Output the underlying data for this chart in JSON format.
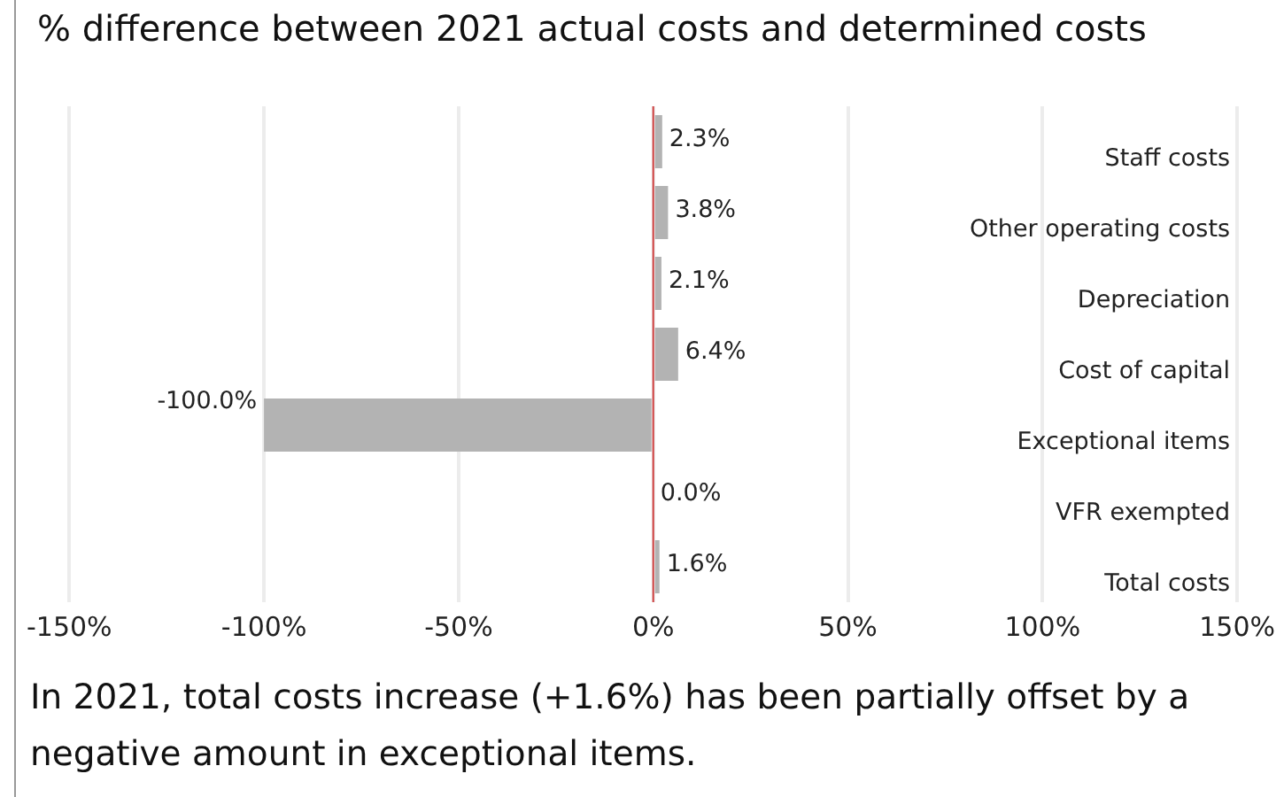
{
  "chart_data": {
    "type": "bar",
    "orientation": "horizontal",
    "title": "% difference between 2021 actual costs and determined costs",
    "categories": [
      "Staff costs",
      "Other operating costs",
      "Depreciation",
      "Cost of capital",
      "Exceptional items",
      "VFR exempted",
      "Total costs"
    ],
    "values": [
      2.3,
      3.8,
      2.1,
      6.4,
      -100.0,
      0.0,
      1.6
    ],
    "value_labels": [
      "2.3%",
      "3.8%",
      "2.1%",
      "6.4%",
      "-100.0%",
      "0.0%",
      "1.6%"
    ],
    "color": "#b3b3b3",
    "xlim": [
      -150,
      150
    ],
    "xticks": [
      {
        "value": -150,
        "label": "-150%"
      },
      {
        "value": -100,
        "label": "-100%"
      },
      {
        "value": -50,
        "label": "-50%"
      },
      {
        "value": 0,
        "label": "0%"
      },
      {
        "value": 50,
        "label": "50%"
      },
      {
        "value": 100,
        "label": "100%"
      },
      {
        "value": 150,
        "label": "150%"
      }
    ],
    "grid": "x",
    "legend": false,
    "ref_lines": [
      {
        "axis": "x",
        "value": 0,
        "color": "#d04040"
      }
    ],
    "annotations": [
      "In 2021, total costs increase (+1.6%) has been partially offset by a negative amount in exceptional items."
    ]
  }
}
